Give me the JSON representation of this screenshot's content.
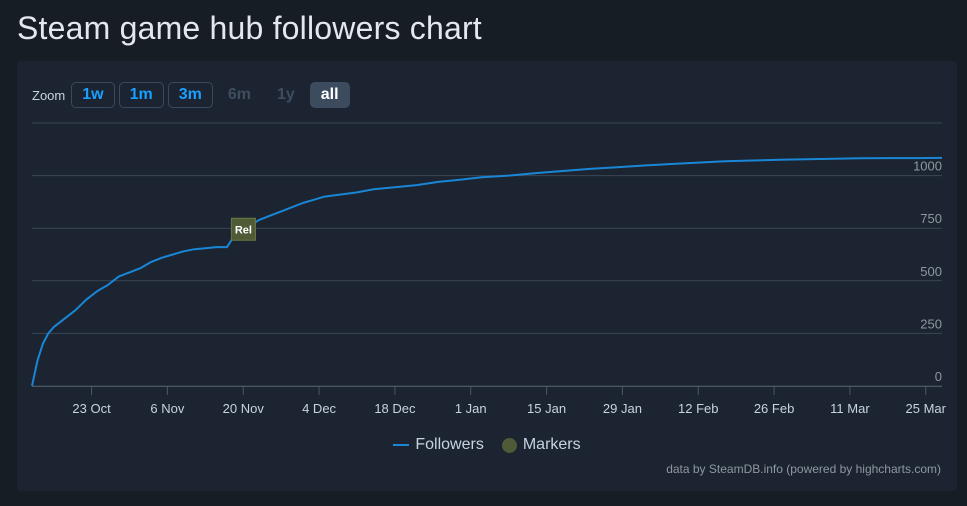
{
  "page": {
    "title": "Steam game hub followers chart"
  },
  "zoom": {
    "label": "Zoom",
    "buttons": [
      {
        "label": "1w",
        "state": "enabled"
      },
      {
        "label": "1m",
        "state": "enabled"
      },
      {
        "label": "3m",
        "state": "enabled"
      },
      {
        "label": "6m",
        "state": "disabled"
      },
      {
        "label": "1y",
        "state": "disabled"
      },
      {
        "label": "all",
        "state": "active"
      }
    ]
  },
  "legend": {
    "followers": "Followers",
    "markers": "Markers"
  },
  "credits": "data by SteamDB.info (powered by highcharts.com)",
  "colors": {
    "line": "#1a86d6",
    "marker": "#4f5b36",
    "grid": "#3a4654"
  },
  "chart_data": {
    "type": "line",
    "xlabel": "",
    "ylabel": "",
    "ylim": [
      0,
      1250
    ],
    "yticks": [
      0,
      250,
      500,
      750,
      1000
    ],
    "xlim": [
      "2023-10-12",
      "2024-03-28"
    ],
    "xticks": [
      {
        "date": "2023-10-23",
        "label": "23 Oct"
      },
      {
        "date": "2023-11-06",
        "label": "6 Nov"
      },
      {
        "date": "2023-11-20",
        "label": "20 Nov"
      },
      {
        "date": "2023-12-04",
        "label": "4 Dec"
      },
      {
        "date": "2023-12-18",
        "label": "18 Dec"
      },
      {
        "date": "2024-01-01",
        "label": "1 Jan"
      },
      {
        "date": "2024-01-15",
        "label": "15 Jan"
      },
      {
        "date": "2024-01-29",
        "label": "29 Jan"
      },
      {
        "date": "2024-02-12",
        "label": "12 Feb"
      },
      {
        "date": "2024-02-26",
        "label": "26 Feb"
      },
      {
        "date": "2024-03-11",
        "label": "11 Mar"
      },
      {
        "date": "2024-03-25",
        "label": "25 Mar"
      }
    ],
    "grid": true,
    "legend_position": "bottom",
    "series": [
      {
        "name": "Followers",
        "x": [
          "2023-10-12",
          "2023-10-13",
          "2023-10-14",
          "2023-10-15",
          "2023-10-16",
          "2023-10-18",
          "2023-10-20",
          "2023-10-22",
          "2023-10-24",
          "2023-10-26",
          "2023-10-28",
          "2023-10-30",
          "2023-11-01",
          "2023-11-03",
          "2023-11-05",
          "2023-11-07",
          "2023-11-09",
          "2023-11-11",
          "2023-11-13",
          "2023-11-15",
          "2023-11-17",
          "2023-11-18",
          "2023-11-19",
          "2023-11-21",
          "2023-11-23",
          "2023-11-25",
          "2023-11-27",
          "2023-11-29",
          "2023-12-01",
          "2023-12-03",
          "2023-12-05",
          "2023-12-08",
          "2023-12-11",
          "2023-12-14",
          "2023-12-18",
          "2023-12-22",
          "2023-12-26",
          "2023-12-30",
          "2024-01-03",
          "2024-01-08",
          "2024-01-13",
          "2024-01-18",
          "2024-01-23",
          "2024-01-28",
          "2024-02-02",
          "2024-02-07",
          "2024-02-12",
          "2024-02-17",
          "2024-02-22",
          "2024-02-27",
          "2024-03-03",
          "2024-03-08",
          "2024-03-13",
          "2024-03-18",
          "2024-03-23",
          "2024-03-28"
        ],
        "y": [
          0,
          120,
          200,
          250,
          280,
          320,
          360,
          410,
          450,
          480,
          520,
          540,
          560,
          590,
          610,
          625,
          640,
          650,
          655,
          660,
          660,
          700,
          720,
          760,
          790,
          810,
          830,
          850,
          870,
          885,
          900,
          910,
          920,
          935,
          945,
          955,
          970,
          980,
          992,
          1000,
          1012,
          1022,
          1032,
          1040,
          1048,
          1055,
          1062,
          1068,
          1072,
          1075,
          1078,
          1080,
          1082,
          1083,
          1083,
          1084
        ]
      }
    ],
    "markers": [
      {
        "date": "2023-11-18",
        "label": "Rel",
        "y": 745
      }
    ]
  }
}
